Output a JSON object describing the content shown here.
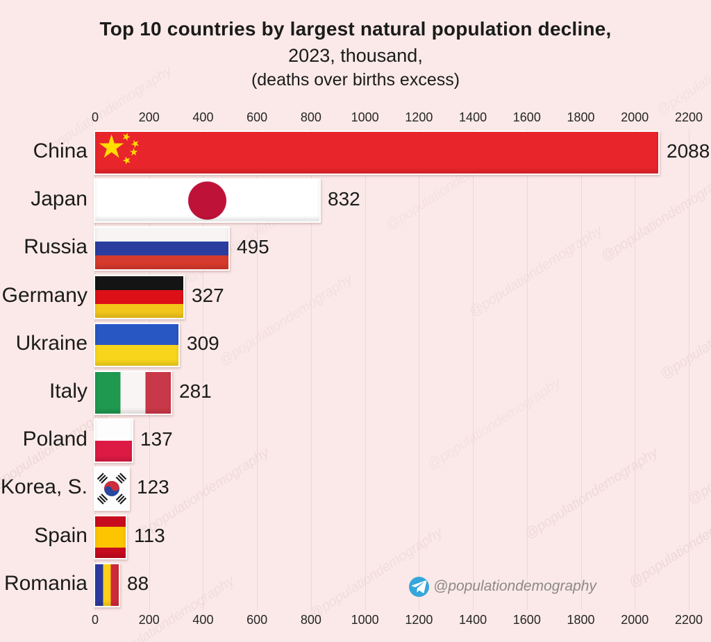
{
  "title": {
    "line1": "Top 10 countries by largest natural population decline,",
    "line2": "2023, thousand,",
    "line3": "(deaths over births excess)"
  },
  "watermark": {
    "handle": "@populationdemography",
    "telegram_color": "#35a6dc",
    "plane_color": "#ffffff"
  },
  "chart_data": {
    "type": "bar",
    "orientation": "horizontal",
    "title": "Top 10 countries by largest natural population decline, 2023, thousand (deaths over births excess)",
    "categories": [
      "China",
      "Japan",
      "Russia",
      "Germany",
      "Ukraine",
      "Italy",
      "Poland",
      "Korea, S.",
      "Spain",
      "Romania"
    ],
    "values": [
      2088,
      832,
      495,
      327,
      309,
      281,
      137,
      123,
      113,
      88
    ],
    "xlim": [
      0,
      2200
    ],
    "x_ticks": [
      0,
      200,
      400,
      600,
      800,
      1000,
      1200,
      1400,
      1600,
      1800,
      2000,
      2200
    ],
    "grid": "vertical",
    "legend": "none",
    "bar_fill_style": "country-flags",
    "countries": [
      {
        "name": "China",
        "value": 2088,
        "flag": {
          "type": "china",
          "field": "#e8252b",
          "star": "#ffde00"
        }
      },
      {
        "name": "Japan",
        "value": 832,
        "flag": {
          "type": "disc",
          "field": "#ffffff",
          "disc": "#bf1238"
        }
      },
      {
        "name": "Russia",
        "value": 495,
        "flag": {
          "type": "stripes-h",
          "stripes": [
            {
              "c": "#f7f4f3",
              "w": 1
            },
            {
              "c": "#2b3e9f",
              "w": 1
            },
            {
              "c": "#d63a2c",
              "w": 1
            }
          ]
        }
      },
      {
        "name": "Germany",
        "value": 327,
        "flag": {
          "type": "stripes-h",
          "stripes": [
            {
              "c": "#141414",
              "w": 1
            },
            {
              "c": "#dd0f17",
              "w": 1
            },
            {
              "c": "#f2c51b",
              "w": 1
            }
          ]
        }
      },
      {
        "name": "Ukraine",
        "value": 309,
        "flag": {
          "type": "stripes-h",
          "stripes": [
            {
              "c": "#2857c4",
              "w": 1
            },
            {
              "c": "#f8d41b",
              "w": 1
            }
          ]
        }
      },
      {
        "name": "Italy",
        "value": 281,
        "flag": {
          "type": "stripes-v",
          "stripes": [
            {
              "c": "#1f9850",
              "w": 1
            },
            {
              "c": "#f8f5f4",
              "w": 1
            },
            {
              "c": "#c93848",
              "w": 1
            }
          ]
        }
      },
      {
        "name": "Poland",
        "value": 137,
        "flag": {
          "type": "stripes-h",
          "stripes": [
            {
              "c": "#fdfdfd",
              "w": 1
            },
            {
              "c": "#dc1a44",
              "w": 1
            }
          ]
        }
      },
      {
        "name": "Korea, S.",
        "value": 123,
        "flag": {
          "type": "korea",
          "field": "#fdfdfd",
          "taegeuk_red": "#cd2e3a",
          "taegeuk_blue": "#27479e",
          "trigram": "#1a1a1a"
        }
      },
      {
        "name": "Spain",
        "value": 113,
        "flag": {
          "type": "stripes-h",
          "stripes": [
            {
              "c": "#c60b1e",
              "w": 1
            },
            {
              "c": "#fdc400",
              "w": 2
            },
            {
              "c": "#c60b1e",
              "w": 1
            }
          ]
        }
      },
      {
        "name": "Romania",
        "value": 88,
        "flag": {
          "type": "stripes-v",
          "stripes": [
            {
              "c": "#2b3a9e",
              "w": 1
            },
            {
              "c": "#fcd116",
              "w": 1
            },
            {
              "c": "#ce2939",
              "w": 1
            }
          ]
        }
      }
    ]
  }
}
